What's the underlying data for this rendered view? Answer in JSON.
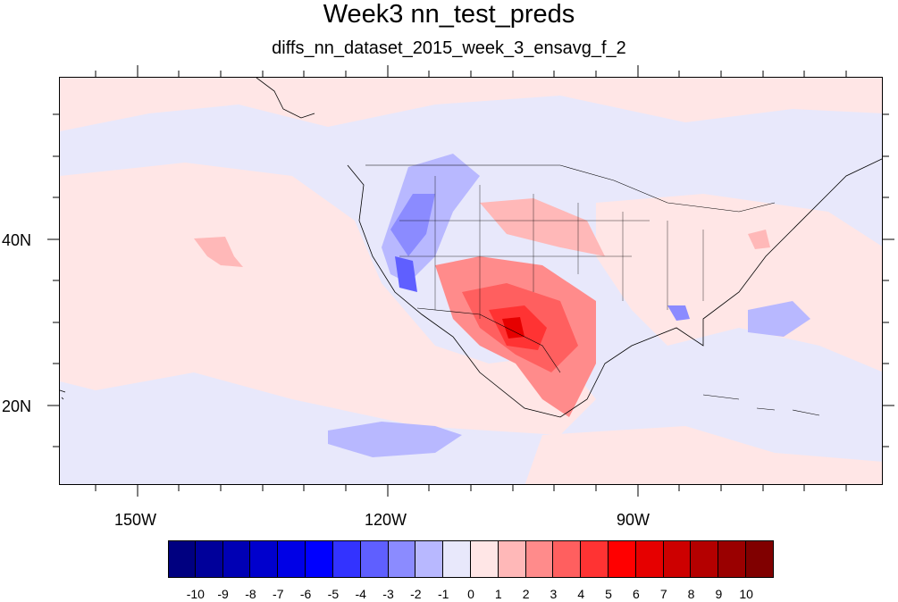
{
  "title": "Week3 nn_test_preds",
  "subtitle": "diffs_nn_dataset_2015_week_3_ensavg_f_2",
  "map": {
    "projection": "cylindrical equidistant",
    "lon_range": [
      -169,
      -70
    ],
    "lat_range": [
      11,
      60
    ],
    "lon_labels": [
      "150W",
      "120W",
      "90W"
    ],
    "lat_labels": [
      "40N",
      "20N"
    ],
    "background_color": "#e8e8fb"
  },
  "colorbar": {
    "labels": [
      "-10",
      "-9",
      "-8",
      "-7",
      "-6",
      "-5",
      "-4",
      "-3",
      "-2",
      "-1",
      "0",
      "1",
      "2",
      "3",
      "4",
      "5",
      "6",
      "7",
      "8",
      "9",
      "10"
    ],
    "colors": [
      "#000080",
      "#00009a",
      "#0000b4",
      "#0000cd",
      "#0000e6",
      "#0000ff",
      "#3333ff",
      "#5f5fff",
      "#8b8bff",
      "#b8b8ff",
      "#e8e8fb",
      "#ffe6e6",
      "#ffb8b8",
      "#ff8b8b",
      "#ff5f5f",
      "#ff3333",
      "#ff0000",
      "#e60000",
      "#cd0000",
      "#b40000",
      "#9a0000",
      "#800000"
    ]
  }
}
